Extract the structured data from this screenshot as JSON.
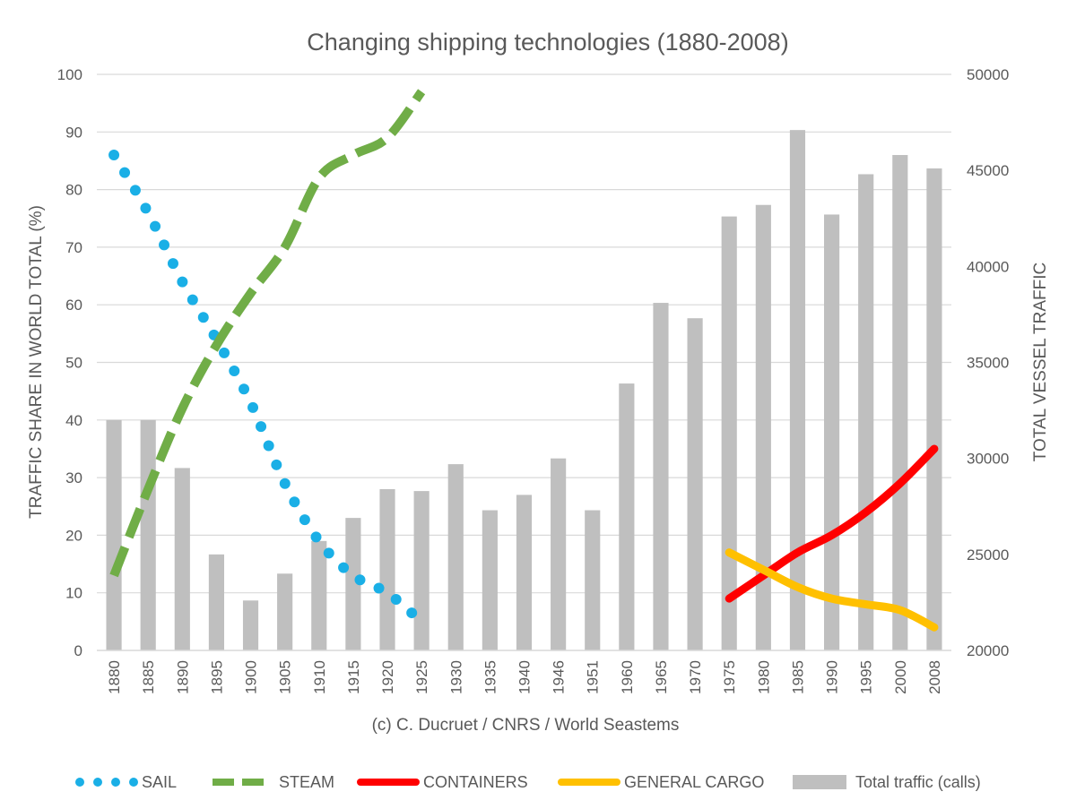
{
  "chart_data": {
    "type": "bar",
    "title": "Changing shipping technologies (1880-2008)",
    "xlabel": "(c) C. Ducruet / CNRS / World Seastems",
    "ylabel": "TRAFFIC SHARE IN WORLD TOTAL (%)",
    "y2label": "TOTAL VESSEL TRAFFIC",
    "ylim": [
      0,
      100
    ],
    "y2lim": [
      20000,
      50000
    ],
    "yticks": [
      0,
      10,
      20,
      30,
      40,
      50,
      60,
      70,
      80,
      90,
      100
    ],
    "y2ticks": [
      20000,
      25000,
      30000,
      35000,
      40000,
      45000,
      50000
    ],
    "grid": true,
    "legend_position": "bottom",
    "categories": [
      "1880",
      "1885",
      "1890",
      "1895",
      "1900",
      "1905",
      "1910",
      "1915",
      "1920",
      "1925",
      "1930",
      "1935",
      "1940",
      "1946",
      "1951",
      "1960",
      "1965",
      "1970",
      "1975",
      "1980",
      "1985",
      "1990",
      "1995",
      "2000",
      "2008"
    ],
    "series": [
      {
        "name": "Total traffic (calls)",
        "type": "bar",
        "axis": "right",
        "color": "#bfbfbf",
        "values": [
          32000,
          32000,
          29500,
          25000,
          22600,
          24000,
          25700,
          26900,
          28400,
          28300,
          29700,
          27300,
          28100,
          30000,
          27300,
          33900,
          38100,
          37300,
          42600,
          43200,
          47100,
          42700,
          44800,
          45800,
          45100
        ]
      },
      {
        "name": "SAIL",
        "type": "line",
        "style": "dotted",
        "axis": "left",
        "color": "#1aafe6",
        "values": [
          86,
          76,
          64,
          54,
          43,
          29,
          19,
          13,
          10,
          5,
          null,
          null,
          null,
          null,
          null,
          null,
          null,
          null,
          null,
          null,
          null,
          null,
          null,
          null,
          null
        ]
      },
      {
        "name": "STEAM",
        "type": "line",
        "style": "dashed",
        "axis": "left",
        "color": "#70ad47",
        "values": [
          13,
          28,
          42,
          53,
          62,
          70,
          82,
          86,
          89,
          97,
          null,
          null,
          null,
          null,
          null,
          null,
          null,
          null,
          null,
          null,
          null,
          null,
          null,
          null,
          null
        ]
      },
      {
        "name": "CONTAINERS",
        "type": "line",
        "style": "solid",
        "axis": "left",
        "color": "#ff0000",
        "values": [
          null,
          null,
          null,
          null,
          null,
          null,
          null,
          null,
          null,
          null,
          null,
          null,
          null,
          null,
          null,
          null,
          null,
          null,
          9,
          13,
          17,
          20,
          24,
          29,
          35
        ]
      },
      {
        "name": "GENERAL CARGO",
        "type": "line",
        "style": "solid",
        "axis": "left",
        "color": "#ffc000",
        "values": [
          null,
          null,
          null,
          null,
          null,
          null,
          null,
          null,
          null,
          null,
          null,
          null,
          null,
          null,
          null,
          null,
          null,
          null,
          17,
          14,
          11,
          9,
          8,
          7,
          4
        ]
      }
    ]
  }
}
